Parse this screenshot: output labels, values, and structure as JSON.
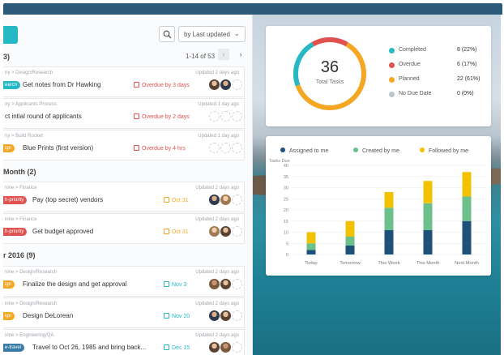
{
  "toolbar": {
    "sort_label": "by Last updated"
  },
  "colors": {
    "accent": "#26b8c4",
    "overdue": "#e0524f",
    "planned": "#f5a623",
    "assigned": "#1f4f7a",
    "created": "#6cc08b",
    "followed": "#f2c200"
  },
  "groups": [
    {
      "title": "3)"
    },
    {
      "title": "Month (2)"
    },
    {
      "title": "r 2016 (9)"
    }
  ],
  "pager": {
    "range": "1-14",
    "of": "of 53"
  },
  "tasks": [
    {
      "crumb": "ny > Design/Research",
      "updated": "Updated 2 days ago",
      "tag": "earch",
      "tag_color": "#26b8c4",
      "title": "Get notes from Dr Hawking",
      "due": "Overdue by 3 days",
      "due_color": "#e0524f",
      "avatars": [
        "p1",
        "p2",
        "empty"
      ]
    },
    {
      "crumb": "ny > Applicants Process",
      "updated": "Updated 1 day ago",
      "tag": "",
      "tag_color": "",
      "title": "ct intial round of applicants",
      "due": "Overdue by 2 days",
      "due_color": "#e0524f",
      "avatars": [
        "empty",
        "empty",
        "empty"
      ]
    },
    {
      "crumb": "ny > Build Rocket",
      "updated": "Updated 1 day ago",
      "tag": "ign",
      "tag_color": "#f5a623",
      "title": "Blue Prints (first version)",
      "due": "Overdue by 4 hrs",
      "due_color": "#e0524f",
      "avatars": [
        "empty",
        "empty",
        "empty"
      ]
    },
    {
      "crumb": "nine > Finance",
      "updated": "Updated 2 days ago",
      "tag": "h-priority",
      "tag_color": "#e0524f",
      "title": "Pay (top secret) vendors",
      "due": "Oct 31",
      "due_color": "#f5a623",
      "avatars": [
        "p2",
        "p4",
        "empty"
      ]
    },
    {
      "crumb": "nine > Finance",
      "updated": "Updated 2 days ago",
      "tag": "h-priority",
      "tag_color": "#e0524f",
      "title": "Get budget approved",
      "due": "Oct 31",
      "due_color": "#f5a623",
      "avatars": [
        "p4",
        "p1",
        "empty"
      ]
    },
    {
      "crumb": "nine > Design/Research",
      "updated": "Updated 2 days ago",
      "tag": "ign",
      "tag_color": "#f5a623",
      "title": "Finalize the design and get approval",
      "due": "Nov 3",
      "due_color": "#26b8c4",
      "avatars": [
        "p3",
        "p1",
        "empty"
      ]
    },
    {
      "crumb": "nine > Design/Research",
      "updated": "Updated 2 days ago",
      "tag": "ign",
      "tag_color": "#f5a623",
      "title": "Design DeLorean",
      "due": "Nov 20",
      "due_color": "#26b8c4",
      "avatars": [
        "p2",
        "p1",
        "empty"
      ]
    },
    {
      "crumb": "nine > Engineering/QA",
      "updated": "Updated 2 days ago",
      "tag": "e-travel",
      "tag_color": "#3a7ca5",
      "title": "Travel to Oct 26, 1985 and bring back...",
      "due": "Dec 15",
      "due_color": "#26b8c4",
      "avatars": [
        "p1",
        "p3",
        "empty"
      ]
    }
  ],
  "summary": {
    "total": "36",
    "total_label": "Total Tasks",
    "items": [
      {
        "label": "Completed",
        "value": "8 (22%)",
        "color": "#26b8c4"
      },
      {
        "label": "Overdue",
        "value": "6 (17%)",
        "color": "#e0524f"
      },
      {
        "label": "Planned",
        "value": "22 (61%)",
        "color": "#f5a623"
      },
      {
        "label": "No Due Date",
        "value": "0 (0%)",
        "color": "#bfc5cb"
      }
    ]
  },
  "chart_data": {
    "type": "bar",
    "stacked": true,
    "ylabel": "Tasks Due",
    "categories": [
      "Today",
      "Tomorrow",
      "This Week",
      "This Month",
      "Next Month"
    ],
    "ylim": [
      0,
      40
    ],
    "yticks": [
      0,
      5,
      10,
      15,
      20,
      25,
      30,
      35,
      40
    ],
    "grid": true,
    "series": [
      {
        "name": "Assigned to me",
        "color": "#1f4f7a",
        "values": [
          2,
          4,
          11,
          11,
          15
        ]
      },
      {
        "name": "Created by me",
        "color": "#6cc08b",
        "values": [
          3,
          4,
          10,
          12,
          11
        ]
      },
      {
        "name": "Followed by me",
        "color": "#f2c200",
        "values": [
          5,
          7,
          7,
          10,
          11
        ]
      }
    ]
  }
}
